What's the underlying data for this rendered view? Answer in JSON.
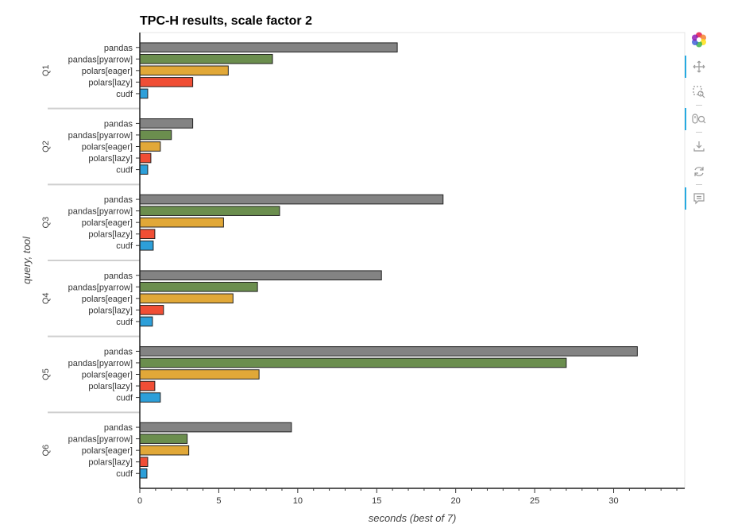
{
  "chart_data": {
    "type": "bar",
    "orientation": "horizontal",
    "title": "TPC-H results, scale factor 2",
    "xlabel": "seconds (best of 7)",
    "ylabel": "query, tool",
    "xlim": [
      0,
      34.5
    ],
    "xticks": [
      0,
      5,
      10,
      15,
      20,
      25,
      30
    ],
    "groups": [
      "Q1",
      "Q2",
      "Q3",
      "Q4",
      "Q5",
      "Q6"
    ],
    "tools": [
      "pandas",
      "pandas[pyarrow]",
      "polars[eager]",
      "polars[lazy]",
      "cudf"
    ],
    "colors": {
      "pandas": "#838383",
      "pandas[pyarrow]": "#6b8e4e",
      "polars[eager]": "#e1a838",
      "polars[lazy]": "#f04e35",
      "cudf": "#2d9fd9"
    },
    "series": [
      {
        "group": "Q1",
        "values": [
          16.3,
          8.4,
          5.6,
          3.35,
          0.5
        ]
      },
      {
        "group": "Q2",
        "values": [
          3.35,
          2.0,
          1.3,
          0.7,
          0.5
        ]
      },
      {
        "group": "Q3",
        "values": [
          19.2,
          8.85,
          5.3,
          0.95,
          0.85
        ]
      },
      {
        "group": "Q4",
        "values": [
          15.3,
          7.45,
          5.9,
          1.5,
          0.8
        ]
      },
      {
        "group": "Q5",
        "values": [
          31.5,
          27.0,
          7.55,
          0.95,
          1.3
        ]
      },
      {
        "group": "Q6",
        "values": [
          9.6,
          3.0,
          3.1,
          0.5,
          0.45
        ]
      }
    ]
  },
  "toolbar": {
    "tools": [
      "bokeh-logo-icon",
      "pan-icon",
      "box-zoom-icon",
      "wheel-zoom-icon",
      "save-icon",
      "reset-icon",
      "hover-icon"
    ]
  }
}
